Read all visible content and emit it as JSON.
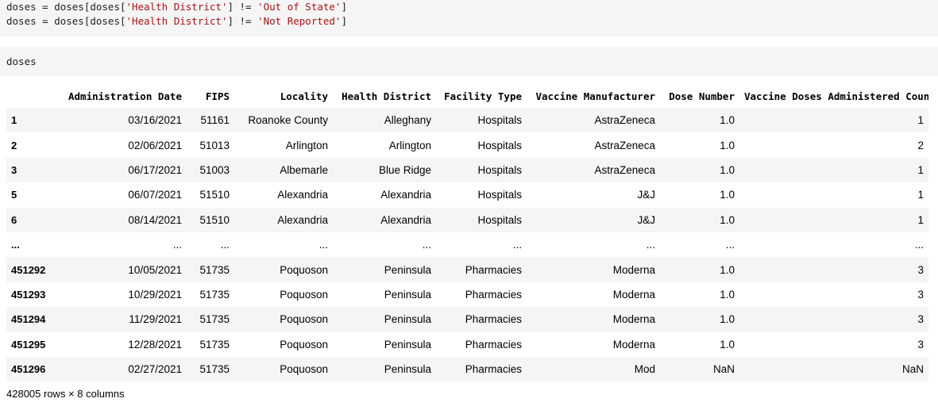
{
  "code_cells": [
    {
      "lines": [
        {
          "pre": "doses = doses[doses[",
          "s1": "'Health District'",
          "mid": "] != ",
          "s2": "'Out of State'",
          "post": "]"
        },
        {
          "pre": "doses = doses[doses[",
          "s1": "'Health District'",
          "mid": "] != ",
          "s2": "'Not Reported'",
          "post": "]"
        }
      ]
    },
    {
      "text": "doses"
    }
  ],
  "dataframe": {
    "columns": [
      "",
      "Administration Date",
      "FIPS",
      "Locality",
      "Health District",
      "Facility Type",
      "Vaccine Manufacturer",
      "Dose Number",
      "Vaccine Doses Administered Count"
    ],
    "rows": [
      {
        "index": "1",
        "cells": [
          "03/16/2021",
          "51161",
          "Roanoke County",
          "Alleghany",
          "Hospitals",
          "AstraZeneca",
          "1.0",
          "1"
        ]
      },
      {
        "index": "2",
        "cells": [
          "02/06/2021",
          "51013",
          "Arlington",
          "Arlington",
          "Hospitals",
          "AstraZeneca",
          "1.0",
          "2"
        ]
      },
      {
        "index": "3",
        "cells": [
          "06/17/2021",
          "51003",
          "Albemarle",
          "Blue Ridge",
          "Hospitals",
          "AstraZeneca",
          "1.0",
          "1"
        ]
      },
      {
        "index": "5",
        "cells": [
          "06/07/2021",
          "51510",
          "Alexandria",
          "Alexandria",
          "Hospitals",
          "J&J",
          "1.0",
          "1"
        ]
      },
      {
        "index": "6",
        "cells": [
          "08/14/2021",
          "51510",
          "Alexandria",
          "Alexandria",
          "Hospitals",
          "J&J",
          "1.0",
          "1"
        ]
      },
      {
        "index": "...",
        "cells": [
          "...",
          "...",
          "...",
          "...",
          "...",
          "...",
          "...",
          "..."
        ]
      },
      {
        "index": "451292",
        "cells": [
          "10/05/2021",
          "51735",
          "Poquoson",
          "Peninsula",
          "Pharmacies",
          "Moderna",
          "1.0",
          "3"
        ]
      },
      {
        "index": "451293",
        "cells": [
          "10/29/2021",
          "51735",
          "Poquoson",
          "Peninsula",
          "Pharmacies",
          "Moderna",
          "1.0",
          "3"
        ]
      },
      {
        "index": "451294",
        "cells": [
          "11/29/2021",
          "51735",
          "Poquoson",
          "Peninsula",
          "Pharmacies",
          "Moderna",
          "1.0",
          "3"
        ]
      },
      {
        "index": "451295",
        "cells": [
          "12/28/2021",
          "51735",
          "Poquoson",
          "Peninsula",
          "Pharmacies",
          "Moderna",
          "1.0",
          "3"
        ]
      },
      {
        "index": "451296",
        "cells": [
          "02/27/2021",
          "51735",
          "Poquoson",
          "Peninsula",
          "Pharmacies",
          "Mod",
          "NaN",
          "NaN"
        ]
      }
    ],
    "shape_text": "428005 rows × 8 columns"
  }
}
